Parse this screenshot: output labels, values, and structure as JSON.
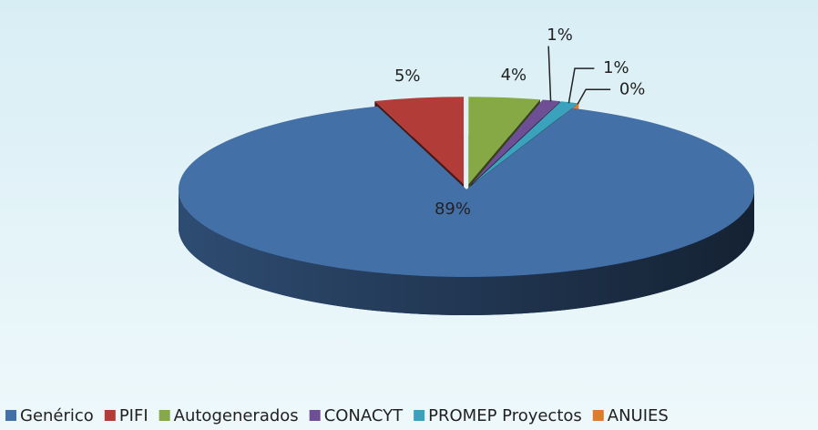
{
  "chart_data": {
    "type": "pie",
    "categories": [
      "Genérico",
      "PIFI",
      "Autogenerados",
      "CONACYT",
      "PROMEP Proyectos",
      "ANUIES"
    ],
    "values": [
      89,
      5,
      4,
      1,
      1,
      0
    ],
    "value_labels": [
      "89%",
      "5%",
      "4%",
      "1%",
      "1%",
      "0%"
    ],
    "colors": [
      "#4470a8",
      "#b23c38",
      "#87a945",
      "#6e4f96",
      "#3aa2bd",
      "#e07b2b"
    ],
    "legend": "bottom"
  }
}
